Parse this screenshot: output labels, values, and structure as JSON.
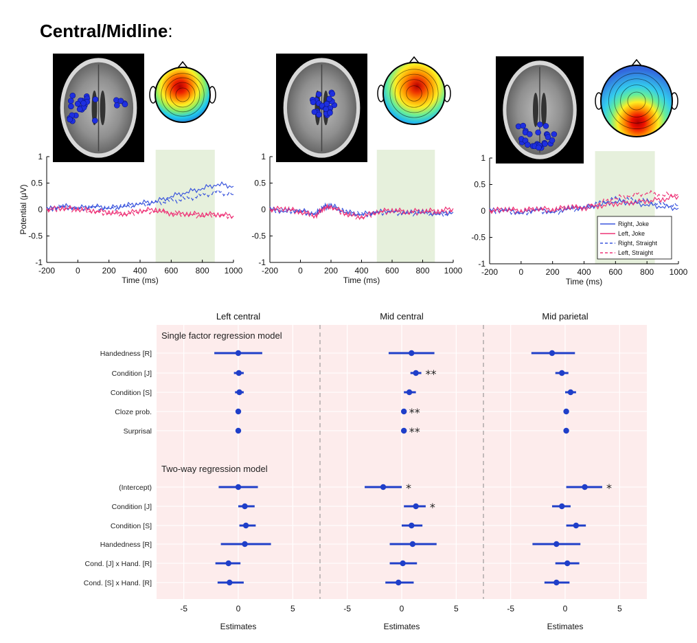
{
  "title": {
    "main": "Central/Midline",
    "suffix": ":"
  },
  "chart_data": [
    {
      "type": "line",
      "panel": "erp-left",
      "xlabel": "Time (ms)",
      "ylabel": "Potential (μV)",
      "xlim": [
        -200,
        1000
      ],
      "ylim": [
        -1,
        1
      ],
      "xticks": [
        "-200",
        "0",
        "200",
        "400",
        "600",
        "800",
        "1000"
      ],
      "yticks": [
        "1",
        "0.5",
        "0",
        "-0.5",
        "-1"
      ],
      "shaded_window": [
        500,
        880
      ],
      "series": [
        {
          "name": "Right, Joke",
          "x": [
            -200,
            -100,
            0,
            100,
            200,
            300,
            400,
            500,
            600,
            700,
            800,
            900,
            1000
          ],
          "values": [
            0,
            0.07,
            0.03,
            0.06,
            0.03,
            0.07,
            0.12,
            0.15,
            0.25,
            0.33,
            0.4,
            0.48,
            0.44
          ]
        },
        {
          "name": "Left, Joke",
          "x": [
            -200,
            -100,
            0,
            100,
            200,
            300,
            400,
            500,
            600,
            700,
            800,
            900,
            1000
          ],
          "values": [
            0,
            0.03,
            0.01,
            -0.02,
            -0.05,
            -0.08,
            -0.02,
            0.0,
            -0.08,
            -0.08,
            -0.09,
            -0.09,
            -0.12
          ]
        },
        {
          "name": "Right, Straight",
          "x": [
            -200,
            -100,
            0,
            100,
            200,
            300,
            400,
            500,
            600,
            700,
            800,
            900,
            1000
          ],
          "values": [
            0,
            0.06,
            0.02,
            0.05,
            0.01,
            0.05,
            0.08,
            0.12,
            0.16,
            0.2,
            0.27,
            0.33,
            0.28
          ]
        },
        {
          "name": "Left, Straight",
          "x": [
            -200,
            -100,
            0,
            100,
            200,
            300,
            400,
            500,
            600,
            700,
            800,
            900,
            1000
          ],
          "values": [
            0,
            0.02,
            0.0,
            -0.04,
            -0.07,
            -0.09,
            -0.04,
            -0.03,
            -0.06,
            -0.09,
            -0.12,
            -0.1,
            -0.13
          ]
        }
      ]
    },
    {
      "type": "line",
      "panel": "erp-mid",
      "xlabel": "Time (ms)",
      "xlim": [
        -200,
        1000
      ],
      "ylim": [
        -1,
        1
      ],
      "xticks": [
        "-200",
        "0",
        "200",
        "400",
        "600",
        "800",
        "1000"
      ],
      "yticks": [
        "1",
        "0.5",
        "0",
        "-0.5",
        "-1"
      ],
      "shaded_window": [
        500,
        880
      ],
      "series": [
        {
          "name": "Right, Joke",
          "x": [
            -200,
            -100,
            0,
            100,
            150,
            200,
            300,
            400,
            500,
            600,
            700,
            800,
            900,
            1000
          ],
          "values": [
            0,
            -0.03,
            -0.02,
            -0.08,
            0.05,
            0.08,
            -0.05,
            -0.09,
            -0.05,
            -0.03,
            -0.06,
            -0.05,
            -0.08,
            -0.05
          ]
        },
        {
          "name": "Left, Joke",
          "x": [
            -200,
            -100,
            0,
            100,
            150,
            200,
            300,
            400,
            500,
            600,
            700,
            800,
            900,
            1000
          ],
          "values": [
            0,
            0.02,
            -0.04,
            -0.12,
            0.03,
            0.06,
            -0.08,
            -0.14,
            -0.04,
            -0.01,
            -0.04,
            -0.02,
            -0.03,
            0.02
          ]
        },
        {
          "name": "Right, Straight",
          "x": [
            -200,
            -100,
            0,
            100,
            150,
            200,
            300,
            400,
            500,
            600,
            700,
            800,
            900,
            1000
          ],
          "values": [
            0,
            -0.02,
            -0.03,
            -0.1,
            0.04,
            0.06,
            -0.06,
            -0.1,
            -0.06,
            -0.05,
            -0.08,
            -0.06,
            -0.1,
            -0.08
          ]
        },
        {
          "name": "Left, Straight",
          "x": [
            -200,
            -100,
            0,
            100,
            150,
            200,
            300,
            400,
            500,
            600,
            700,
            800,
            900,
            1000
          ],
          "values": [
            0,
            0.01,
            -0.05,
            -0.13,
            0.02,
            0.05,
            -0.09,
            -0.15,
            -0.06,
            -0.03,
            -0.07,
            -0.04,
            -0.06,
            -0.01
          ]
        }
      ]
    },
    {
      "type": "line",
      "panel": "erp-right",
      "xlabel": "Time (ms)",
      "xlim": [
        -200,
        1000
      ],
      "ylim": [
        -1,
        1
      ],
      "xticks": [
        "-200",
        "0",
        "200",
        "400",
        "600",
        "800",
        "1000"
      ],
      "yticks": [
        "1",
        "0.5",
        "0",
        "-0.5",
        "-1"
      ],
      "shaded_window": [
        470,
        850
      ],
      "legend": {
        "position": "bottom-right",
        "entries": [
          "Right, Joke",
          "Left, Joke",
          "Right, Straight",
          "Left, Straight"
        ]
      },
      "series": [
        {
          "name": "Right, Joke",
          "x": [
            -200,
            -100,
            0,
            100,
            200,
            300,
            400,
            500,
            600,
            700,
            800,
            900,
            1000
          ],
          "values": [
            0,
            0.02,
            -0.04,
            0.03,
            -0.02,
            0.05,
            0.06,
            0.12,
            0.18,
            0.15,
            0.12,
            0.08,
            0.05
          ]
        },
        {
          "name": "Left, Joke",
          "x": [
            -200,
            -100,
            0,
            100,
            200,
            300,
            400,
            500,
            600,
            700,
            800,
            900,
            1000
          ],
          "values": [
            0,
            0.04,
            0.0,
            0.05,
            0.02,
            0.08,
            0.05,
            0.1,
            0.14,
            0.16,
            0.19,
            0.22,
            0.28
          ]
        },
        {
          "name": "Right, Straight",
          "x": [
            -200,
            -100,
            0,
            100,
            200,
            300,
            400,
            500,
            600,
            700,
            800,
            900,
            1000
          ],
          "values": [
            0,
            0.01,
            -0.05,
            0.02,
            -0.04,
            0.03,
            0.04,
            0.14,
            0.22,
            0.2,
            0.18,
            0.12,
            0.1
          ]
        },
        {
          "name": "Left, Straight",
          "x": [
            -200,
            -100,
            0,
            100,
            200,
            300,
            400,
            500,
            600,
            700,
            800,
            900,
            1000
          ],
          "values": [
            0,
            0.03,
            -0.01,
            0.04,
            0.01,
            0.06,
            0.08,
            0.15,
            0.24,
            0.3,
            0.34,
            0.3,
            0.32
          ]
        }
      ]
    },
    {
      "type": "scatter",
      "panel": "coefficient-plots",
      "columns": [
        "Left central",
        "Mid central",
        "Mid parietal"
      ],
      "xlabel": "Estimates",
      "xlim": [
        -7.5,
        7.5
      ],
      "xticks": [
        "-5",
        "0",
        "5"
      ],
      "sections": [
        {
          "title": "Single factor regression model",
          "rows": [
            "Handedness [R]",
            "Condition [J]",
            "Condition [S]",
            "Cloze prob.",
            "Surprisal"
          ]
        },
        {
          "title": "Two-way regression model",
          "rows": [
            "(Intercept)",
            "Condition [J]",
            "Condition [S]",
            "Handedness [R]",
            "Cond. [J] x Hand. [R]",
            "Cond. [S] x Hand. [R]"
          ]
        }
      ],
      "series": [
        {
          "name": "Left central",
          "estimates": [
            0.0,
            0.05,
            0.1,
            0.0,
            0.0,
            0.0,
            0.6,
            0.7,
            0.6,
            -0.9,
            -0.8
          ],
          "lower": [
            -2.2,
            -0.4,
            -0.3,
            -0.1,
            -0.1,
            -1.8,
            0.0,
            0.1,
            -1.6,
            -2.1,
            -1.9
          ],
          "upper": [
            2.2,
            0.5,
            0.5,
            0.1,
            0.1,
            1.8,
            1.5,
            1.6,
            3.0,
            0.2,
            0.5
          ],
          "significance": [
            "",
            "",
            "",
            "",
            "",
            "",
            "",
            "",
            "",
            "",
            ""
          ]
        },
        {
          "name": "Mid central",
          "estimates": [
            0.9,
            1.3,
            0.7,
            0.2,
            0.2,
            -1.7,
            1.3,
            0.9,
            1.0,
            0.1,
            -0.3
          ],
          "lower": [
            -1.2,
            0.8,
            0.2,
            0.1,
            0.1,
            -3.4,
            0.2,
            0.0,
            -1.1,
            -1.1,
            -1.5
          ],
          "upper": [
            3.0,
            1.8,
            1.3,
            0.3,
            0.3,
            0.0,
            2.2,
            1.9,
            3.2,
            1.4,
            1.1
          ],
          "significance": [
            "",
            "**",
            "",
            "**",
            "**",
            "*",
            "*",
            "",
            "",
            "",
            ""
          ]
        },
        {
          "name": "Mid parietal",
          "estimates": [
            -1.2,
            -0.3,
            0.5,
            0.1,
            0.1,
            1.8,
            -0.3,
            1.0,
            -0.8,
            0.2,
            -0.8
          ],
          "lower": [
            -3.1,
            -0.9,
            0.0,
            0.0,
            0.0,
            0.1,
            -1.2,
            0.1,
            -3.0,
            -0.9,
            -1.9
          ],
          "upper": [
            0.9,
            0.3,
            1.0,
            0.2,
            0.2,
            3.4,
            0.5,
            1.9,
            1.4,
            1.3,
            0.4
          ],
          "significance": [
            "",
            "",
            "",
            "",
            "",
            "*",
            "",
            "",
            "",
            "",
            ""
          ]
        }
      ]
    }
  ],
  "colors": {
    "right_joke": "#3a55dd",
    "left_joke": "#ee3377",
    "shade": "#e6f0dc",
    "coef_bg": "#fdecec",
    "coef_dot": "#1f3fc9"
  }
}
